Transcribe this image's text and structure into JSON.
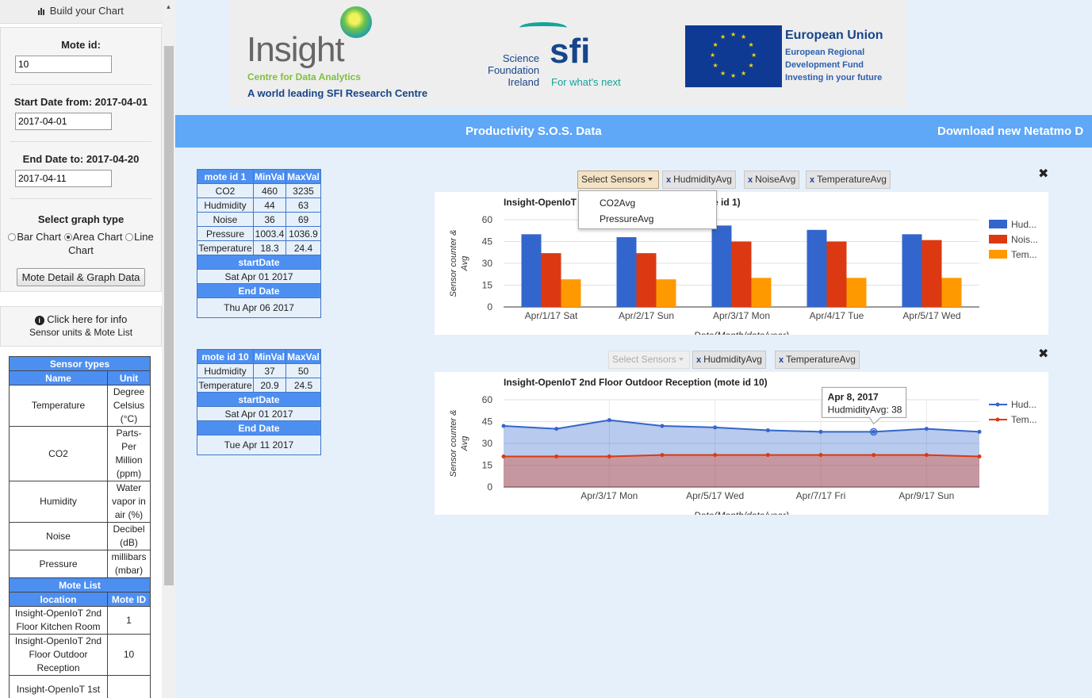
{
  "sidebar": {
    "header": "Build your Chart",
    "mote_id": {
      "label": "Mote id:",
      "value": "10"
    },
    "start_date": {
      "label": "Start Date from: 2017-04-01",
      "value": "2017-04-01"
    },
    "end_date": {
      "label": "End Date to: 2017-04-20",
      "value": "2017-04-11"
    },
    "graph_type": {
      "title": "Select graph type",
      "options": [
        "Bar Chart",
        "Area Chart",
        "Line Chart"
      ],
      "selected": "Area Chart"
    },
    "button": "Mote Detail & Graph Data",
    "info": {
      "line1": "Click here for info",
      "line2": "Sensor units & Mote List"
    },
    "sensor_types": {
      "title": "Sensor types",
      "headers": [
        "Name",
        "Unit"
      ],
      "rows": [
        {
          "name": "Temperature",
          "unit": "Degree Celsius (°C)"
        },
        {
          "name": "CO2",
          "unit": "Parts-Per Million (ppm)"
        },
        {
          "name": "Humidity",
          "unit": "Water vapor in air (%)"
        },
        {
          "name": "Noise",
          "unit": "Decibel (dB)"
        },
        {
          "name": "Pressure",
          "unit": "millibars (mbar)"
        }
      ]
    },
    "mote_list": {
      "title": "Mote List",
      "headers": [
        "location",
        "Mote ID"
      ],
      "rows": [
        {
          "location": "Insight-OpenIoT 2nd Floor Kitchen Room",
          "id": "1"
        },
        {
          "location": "Insight-OpenIoT 2nd Floor Outdoor Reception",
          "id": "10"
        },
        {
          "location": "Insight-OpenIoT 1st",
          "id": ""
        }
      ]
    }
  },
  "logos": {
    "insight": {
      "word": "Insight",
      "sub": "Centre for Data Analytics",
      "tag": "A world leading SFI Research Centre"
    },
    "sfi": {
      "line1": "Science",
      "line2": "Foundation",
      "line3": "Ireland",
      "big": "sfi",
      "tag": "For what's next"
    },
    "eu": {
      "title": "European Union",
      "line1": "European Regional",
      "line2": "Development Fund",
      "line3": "Investing in your future"
    }
  },
  "banner": {
    "title": "Productivity S.O.S. Data",
    "download": "Download new Netatmo D"
  },
  "mote_tables": [
    {
      "headers": [
        "mote id 1",
        "MinVal",
        "MaxVal"
      ],
      "rows": [
        [
          "CO2",
          "460",
          "3235"
        ],
        [
          "Hudmidity",
          "44",
          "63"
        ],
        [
          "Noise",
          "36",
          "69"
        ],
        [
          "Pressure",
          "1003.4",
          "1036.9"
        ],
        [
          "Temperature",
          "18.3",
          "24.4"
        ]
      ],
      "start_label": "startDate",
      "start_value": "Sat Apr 01 2017",
      "end_label": "End Date",
      "end_value": "Thu Apr 06 2017"
    },
    {
      "headers": [
        "mote id 10",
        "MinVal",
        "MaxVal"
      ],
      "rows": [
        [
          "Hudmidity",
          "37",
          "50"
        ],
        [
          "Temperature",
          "20.9",
          "24.5"
        ]
      ],
      "start_label": "startDate",
      "start_value": "Sat Apr 01 2017",
      "end_label": "End Date",
      "end_value": "Tue Apr 11 2017"
    }
  ],
  "chart1_controls": {
    "select_label": "Select Sensors",
    "chips": [
      "HudmidityAvg",
      "NoiseAvg",
      "TemperatureAvg"
    ],
    "dropdown": [
      "CO2Avg",
      "PressureAvg"
    ]
  },
  "chart2_controls": {
    "select_label": "Select Sensors",
    "chips": [
      "HudmidityAvg",
      "TemperatureAvg"
    ]
  },
  "chart_data": [
    {
      "type": "bar",
      "title": "Insight-OpenIoT 2nd Floor Kitchen Room (mote id 1)",
      "xlabel": "Date(Month/date/year)",
      "ylabel": "Sensor counter & Avg",
      "categories": [
        "Apr/1/17 Sat",
        "Apr/2/17 Sun",
        "Apr/3/17 Mon",
        "Apr/4/17 Tue",
        "Apr/5/17 Wed"
      ],
      "series": [
        {
          "name": "Hud...",
          "color": "#3366cc",
          "values": [
            50,
            48,
            56,
            53,
            50
          ]
        },
        {
          "name": "Nois...",
          "color": "#dc3912",
          "values": [
            37,
            37,
            45,
            45,
            46
          ]
        },
        {
          "name": "Tem...",
          "color": "#ff9900",
          "values": [
            19,
            19,
            20,
            20,
            20
          ]
        }
      ],
      "ylim": [
        0,
        60
      ],
      "yticks": [
        0,
        15,
        30,
        45,
        60
      ],
      "legend": "right"
    },
    {
      "type": "area",
      "title": "Insight-OpenIoT 2nd Floor Outdoor Reception (mote id 10)",
      "xlabel": "Date(Month/date/year)",
      "ylabel": "Sensor counter & Avg",
      "x": [
        "Apr 1, 2017",
        "Apr 2, 2017",
        "Apr 3, 2017",
        "Apr 4, 2017",
        "Apr 5, 2017",
        "Apr 6, 2017",
        "Apr 7, 2017",
        "Apr 8, 2017",
        "Apr 9, 2017",
        "Apr 10, 2017"
      ],
      "xticks": [
        {
          "index": 2,
          "label": "Apr/3/17 Mon"
        },
        {
          "index": 4,
          "label": "Apr/5/17 Wed"
        },
        {
          "index": 6,
          "label": "Apr/7/17 Fri"
        },
        {
          "index": 8,
          "label": "Apr/9/17 Sun"
        }
      ],
      "series": [
        {
          "name": "Hud...",
          "color": "#3366cc",
          "values": [
            42,
            40,
            46,
            42,
            41,
            39,
            38,
            38,
            40,
            38
          ]
        },
        {
          "name": "Tem...",
          "color": "#dc3912",
          "values": [
            21,
            21,
            21,
            22,
            22,
            22,
            22,
            22,
            22,
            21
          ]
        }
      ],
      "ylim": [
        0,
        60
      ],
      "yticks": [
        0,
        15,
        30,
        45,
        60
      ],
      "tooltip": {
        "title": "Apr 8, 2017",
        "text": "HudmidityAvg: 38",
        "index": 7
      },
      "legend": "right"
    }
  ]
}
